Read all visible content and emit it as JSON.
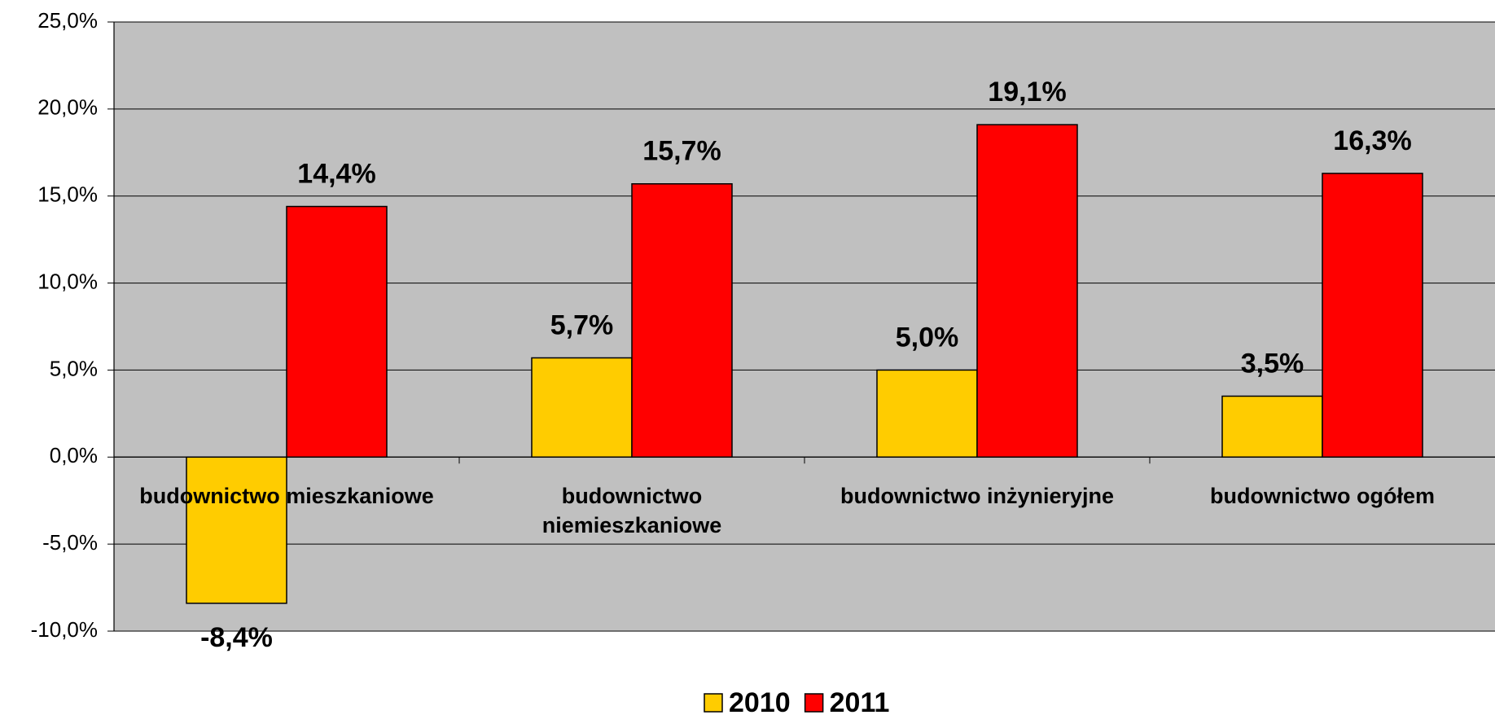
{
  "chart_data": {
    "type": "bar",
    "categories": [
      "budownictwo mieszkaniowe",
      "budownictwo niemieszkaniowe",
      "budownictwo inżynieryjne",
      "budownictwo ogółem"
    ],
    "series": [
      {
        "name": "2010",
        "color": "#ffcc00",
        "values": [
          -8.4,
          5.7,
          5.0,
          3.5
        ],
        "value_labels": [
          "-8,4%",
          "5,7%",
          "5,0%",
          "3,5%"
        ]
      },
      {
        "name": "2011",
        "color": "#ff0000",
        "values": [
          14.4,
          15.7,
          19.1,
          16.3
        ],
        "value_labels": [
          "14,4%",
          "15,7%",
          "19,1%",
          "16,3%"
        ]
      }
    ],
    "ylim": [
      -10,
      25
    ],
    "yticks": [
      {
        "value": -10,
        "label": "-10,0%"
      },
      {
        "value": -5,
        "label": "-5,0%"
      },
      {
        "value": 0,
        "label": "0,0%"
      },
      {
        "value": 5,
        "label": "5,0%"
      },
      {
        "value": 10,
        "label": "10,0%"
      },
      {
        "value": 15,
        "label": "15,0%"
      },
      {
        "value": 20,
        "label": "20,0%"
      },
      {
        "value": 25,
        "label": "25,0%"
      }
    ],
    "grid": true,
    "legend": "bottom"
  }
}
